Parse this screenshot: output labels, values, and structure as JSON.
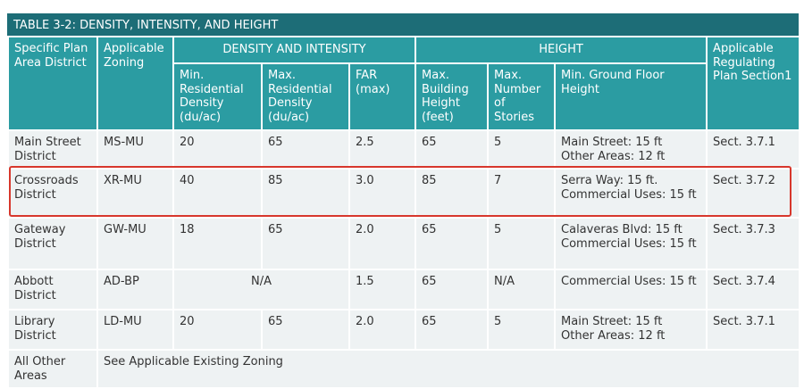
{
  "title": "TABLE 3-2: DENSITY, INTENSITY, AND HEIGHT",
  "header": {
    "groups": [
      "Specific Plan Area District",
      "Applicable Zoning",
      "DENSITY AND INTENSITY",
      "HEIGHT",
      "Applicable Regulating Plan Section1"
    ],
    "subcolumns": [
      "Min. Residential Density (du/ac)",
      "Max. Residential Density (du/ac)",
      "FAR (max)",
      "Max. Building Height (feet)",
      "Max. Number of Stories",
      "Min. Ground Floor Height"
    ]
  },
  "rows": [
    [
      [
        "Main Street District"
      ],
      [
        "MS-MU"
      ],
      [
        "20"
      ],
      [
        "65"
      ],
      [
        "2.5"
      ],
      [
        "65"
      ],
      [
        "5"
      ],
      [
        "Main Street: 15 ft",
        "Other Areas: 12 ft"
      ],
      [
        "Sect. 3.7.1"
      ]
    ],
    [
      [
        "Crossroads District"
      ],
      [
        "XR-MU"
      ],
      [
        "40"
      ],
      [
        "85"
      ],
      [
        "3.0"
      ],
      [
        "85"
      ],
      [
        "7"
      ],
      [
        "Serra Way: 15 ft.",
        "Commercial Uses: 15 ft"
      ],
      [
        "Sect. 3.7.2"
      ]
    ],
    [
      [
        "Gateway District"
      ],
      [
        "GW-MU"
      ],
      [
        "18"
      ],
      [
        "65"
      ],
      [
        "2.0"
      ],
      [
        "65"
      ],
      [
        "5"
      ],
      [
        "Calaveras Blvd: 15 ft",
        "Commercial Uses: 15 ft"
      ],
      [
        "Sect.  3.7.3"
      ]
    ],
    [
      [
        "Abbott District"
      ],
      [
        "AD-BP"
      ],
      [
        "N/A"
      ],
      [
        "1.5"
      ],
      [
        "65"
      ],
      [
        "N/A"
      ],
      [
        "Commercial Uses: 15 ft"
      ],
      [
        "Sect.  3.7.4"
      ]
    ],
    [
      [
        "Library District"
      ],
      [
        "LD-MU"
      ],
      [
        "20"
      ],
      [
        "65"
      ],
      [
        "2.0"
      ],
      [
        "65"
      ],
      [
        "5"
      ],
      [
        "Main Street: 15 ft",
        "Other Areas: 12 ft"
      ],
      [
        "Sect.  3.7.1"
      ]
    ],
    [
      [
        "All Other Areas"
      ],
      [
        "See Applicable Existing Zoning"
      ]
    ]
  ]
}
